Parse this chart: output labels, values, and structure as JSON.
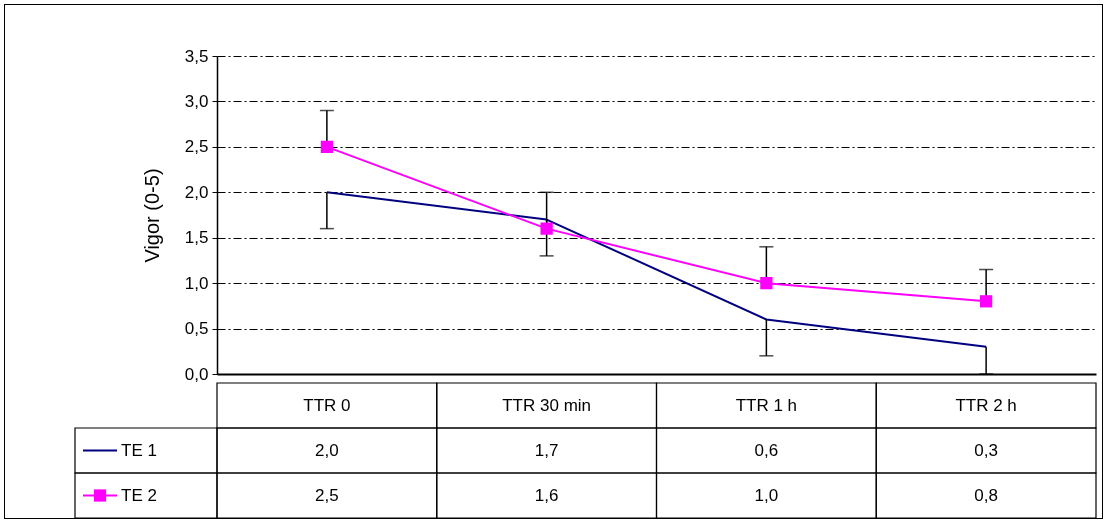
{
  "chart_data": {
    "type": "line",
    "ylabel": "Vigor  (0-5)",
    "categories": [
      "TTR 0",
      "TTR 30 min",
      "TTR 1 h",
      "TTR 2 h"
    ],
    "series": [
      {
        "name": "TE 1",
        "color": "#000080",
        "marker": "none",
        "values": [
          2.0,
          1.7,
          0.6,
          0.3
        ],
        "value_labels": [
          "2,0",
          "1,7",
          "0,6",
          "0,3"
        ],
        "errors": [
          [
            1.6,
            2.0
          ],
          [
            1.3,
            1.7
          ],
          [
            0.2,
            0.6
          ],
          [
            0.0,
            0.3
          ]
        ]
      },
      {
        "name": "TE 2",
        "color": "#ff00ff",
        "marker": "square",
        "values": [
          2.5,
          1.6,
          1.0,
          0.8
        ],
        "value_labels": [
          "2,5",
          "1,6",
          "1,0",
          "0,8"
        ],
        "errors": [
          [
            2.5,
            2.9
          ],
          [
            1.6,
            2.0
          ],
          [
            1.0,
            1.4
          ],
          [
            0.8,
            1.15
          ]
        ]
      }
    ],
    "ylim": [
      0,
      3.5
    ],
    "yticks": [
      {
        "value": 0,
        "label": "0,0"
      },
      {
        "value": 0.5,
        "label": "0,5"
      },
      {
        "value": 1,
        "label": "1,0"
      },
      {
        "value": 1.5,
        "label": "1,5"
      },
      {
        "value": 2,
        "label": "2,0"
      },
      {
        "value": 2.5,
        "label": "2,5"
      },
      {
        "value": 3,
        "label": "3,0"
      },
      {
        "value": 3.5,
        "label": "3,5"
      }
    ],
    "grid": "y",
    "line_style": "solid",
    "legend": "bottom left"
  }
}
